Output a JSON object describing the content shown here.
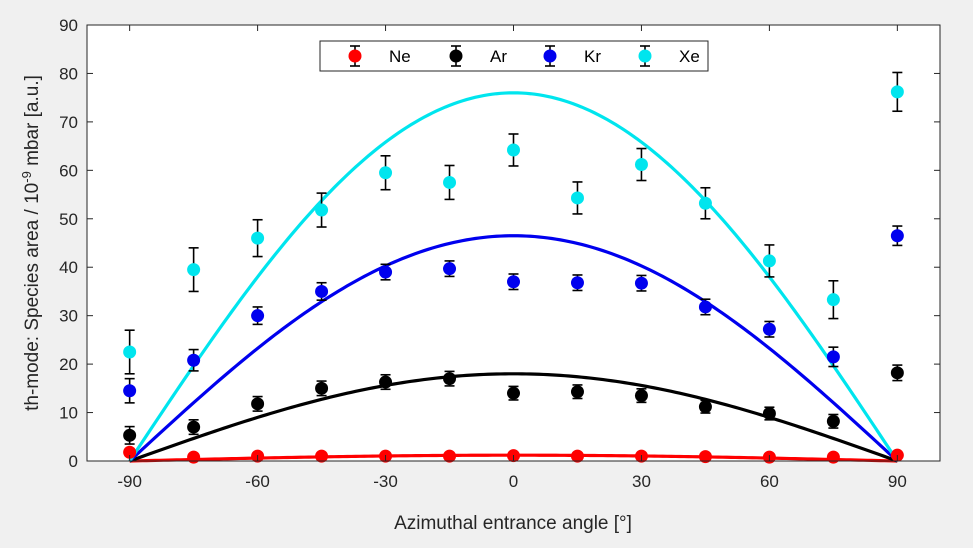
{
  "chart_data": {
    "type": "scatter",
    "xlabel": "Azimuthal entrance angle [°]",
    "ylabel_prefix": "th-mode: Species area / 10",
    "ylabel_exp": "-9",
    "ylabel_suffix": " mbar [a.u.]",
    "xlim": [
      -100,
      100
    ],
    "ylim": [
      0,
      90
    ],
    "x_ticks": [
      -90,
      -60,
      -30,
      0,
      30,
      60,
      90
    ],
    "y_ticks": [
      0,
      10,
      20,
      30,
      40,
      50,
      60,
      70,
      80,
      90
    ],
    "x_tick_labels": [
      "-90",
      "-60",
      "-30",
      "0",
      "30",
      "60",
      "90"
    ],
    "y_tick_labels": [
      "0",
      "10",
      "20",
      "30",
      "40",
      "50",
      "60",
      "70",
      "80",
      "90"
    ],
    "grid": false,
    "legend_position": "top-center",
    "x": [
      -90,
      -75,
      -60,
      -45,
      -30,
      -15,
      0,
      15,
      30,
      45,
      60,
      75,
      90
    ],
    "series": [
      {
        "name": "Ne",
        "color": "#ff0000",
        "values": [
          1.8,
          0.8,
          1.0,
          1.0,
          1.0,
          1.0,
          1.1,
          1.0,
          1.0,
          0.9,
          0.8,
          0.8,
          1.2
        ],
        "errors": [
          0.3,
          0.2,
          0.2,
          0.2,
          0.2,
          0.2,
          0.2,
          0.2,
          0.2,
          0.2,
          0.2,
          0.2,
          0.3
        ],
        "fit_peak": 1.2
      },
      {
        "name": "Ar",
        "color": "#000000",
        "values": [
          5.3,
          7.0,
          11.8,
          15.0,
          16.3,
          17.0,
          14.0,
          14.3,
          13.5,
          11.2,
          9.8,
          8.2,
          18.2
        ],
        "errors": [
          1.8,
          1.5,
          1.5,
          1.5,
          1.5,
          1.5,
          1.4,
          1.4,
          1.4,
          1.3,
          1.3,
          1.4,
          1.6
        ],
        "fit_peak": 18.0
      },
      {
        "name": "Kr",
        "color": "#0000ee",
        "values": [
          14.5,
          20.8,
          30.0,
          35.0,
          39.0,
          39.7,
          37.0,
          36.8,
          36.7,
          31.8,
          27.2,
          21.5,
          46.5
        ],
        "errors": [
          2.5,
          2.2,
          1.8,
          1.8,
          1.6,
          1.6,
          1.6,
          1.6,
          1.6,
          1.6,
          1.6,
          2.0,
          2.0
        ],
        "fit_peak": 46.5
      },
      {
        "name": "Xe",
        "color": "#00e5ee",
        "values": [
          22.5,
          39.5,
          46.0,
          51.8,
          59.5,
          57.5,
          64.2,
          54.3,
          61.2,
          53.2,
          41.3,
          33.3,
          76.2
        ],
        "errors": [
          4.5,
          4.5,
          3.8,
          3.5,
          3.5,
          3.5,
          3.3,
          3.3,
          3.3,
          3.2,
          3.3,
          3.9,
          4.0
        ],
        "fit_peak": 76.0
      }
    ]
  }
}
